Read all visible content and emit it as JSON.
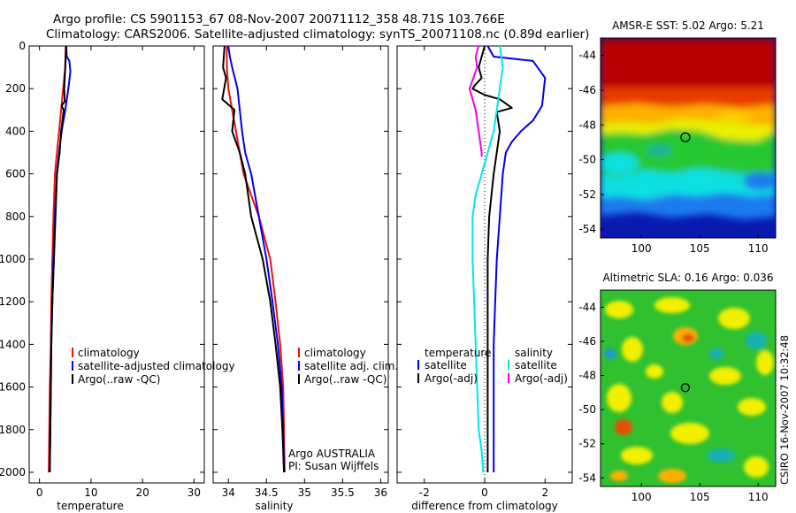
{
  "header": {
    "line1": "Argo profile: CS 5901153_67 08-Nov-2007 20071112_358 48.71S 103.766E",
    "line2": "Climatology: CARS2006. Satellite-adjusted climatology: synTS_20071108.nc (0.89d earlier)"
  },
  "side_label": "CSIRO 16-Nov-2007 10:32:48",
  "colors": {
    "climatology": "#ee1111",
    "satellite": "#0000ee",
    "argo": "#000000",
    "salinity_satellite": "#00e5ee",
    "salinity_argo": "#ee00ee"
  },
  "chart_data": [
    {
      "type": "line",
      "panel": "temperature",
      "xlabel": "temperature",
      "ylabel": "",
      "xlim": [
        -2,
        32
      ],
      "ylim": [
        2050,
        0
      ],
      "xticks": [
        0,
        10,
        20,
        30
      ],
      "yticks": [
        0,
        200,
        400,
        600,
        800,
        1000,
        1200,
        1400,
        1600,
        1800,
        2000
      ],
      "legend": [
        "climatology",
        "satellite-adjusted climatology",
        "Argo(..raw -QC)"
      ],
      "series": [
        {
          "name": "climatology",
          "color": "#ee1111",
          "x": [
            5.1,
            5.0,
            4.6,
            4.2,
            3.8,
            3.4,
            3.0,
            2.7,
            2.5,
            2.3,
            2.2,
            2.0,
            1.9,
            1.8
          ],
          "y": [
            0,
            100,
            200,
            300,
            400,
            500,
            600,
            800,
            1000,
            1200,
            1400,
            1600,
            1800,
            2000
          ]
        },
        {
          "name": "satellite-adjusted climatology",
          "color": "#0000ee",
          "x": [
            5.2,
            5.3,
            5.8,
            6.0,
            5.6,
            5.0,
            4.3,
            3.8,
            3.4,
            3.0,
            2.7,
            2.5,
            2.3,
            2.2,
            2.1,
            2.0
          ],
          "y": [
            0,
            50,
            70,
            120,
            200,
            300,
            400,
            500,
            600,
            800,
            1000,
            1200,
            1400,
            1600,
            1800,
            2000
          ]
        },
        {
          "name": "Argo(..raw -QC)",
          "color": "#000000",
          "x": [
            5.2,
            5.0,
            4.8,
            4.9,
            4.3,
            4.7,
            4.2,
            3.9,
            3.4,
            3.1,
            2.8,
            2.5,
            2.3,
            2.2,
            2.1,
            2.0
          ],
          "y": [
            0,
            100,
            200,
            260,
            280,
            300,
            400,
            500,
            600,
            800,
            1000,
            1200,
            1400,
            1600,
            1800,
            2000
          ]
        }
      ]
    },
    {
      "type": "line",
      "panel": "salinity",
      "xlabel": "salinity",
      "ylabel": "",
      "xlim": [
        33.8,
        36.1
      ],
      "ylim": [
        2050,
        0
      ],
      "xticks": [
        34,
        34.5,
        35,
        35.5,
        36
      ],
      "xticklabels": [
        "34",
        "34.5",
        "35",
        "35.5",
        "36"
      ],
      "legend": [
        "climatology",
        "satellite adj. clim.",
        "Argo(..raw -QC)"
      ],
      "annotations": [
        "Argo AUSTRALIA",
        "PI: Susan Wijffels"
      ],
      "series": [
        {
          "name": "climatology",
          "color": "#ee1111",
          "x": [
            33.98,
            33.98,
            34.0,
            34.05,
            34.1,
            34.15,
            34.2,
            34.3,
            34.4,
            34.55,
            34.62,
            34.68,
            34.72,
            34.73,
            34.74
          ],
          "y": [
            0,
            100,
            200,
            300,
            400,
            500,
            600,
            700,
            800,
            1000,
            1200,
            1400,
            1600,
            1800,
            2000
          ]
        },
        {
          "name": "satellite adj. clim.",
          "color": "#0000ee",
          "x": [
            34.0,
            34.02,
            34.05,
            34.12,
            34.15,
            34.18,
            34.22,
            34.3,
            34.4,
            34.5,
            34.58,
            34.65,
            34.7,
            34.72,
            34.73
          ],
          "y": [
            0,
            50,
            100,
            200,
            300,
            400,
            500,
            600,
            800,
            1000,
            1200,
            1400,
            1600,
            1800,
            2000
          ]
        },
        {
          "name": "Argo(..raw -QC)",
          "color": "#000000",
          "x": [
            33.95,
            33.93,
            33.97,
            33.92,
            34.08,
            34.05,
            34.15,
            34.22,
            34.3,
            34.45,
            34.55,
            34.62,
            34.68,
            34.71,
            34.73
          ],
          "y": [
            0,
            100,
            150,
            250,
            300,
            400,
            500,
            600,
            800,
            1000,
            1200,
            1400,
            1600,
            1800,
            2000
          ]
        }
      ]
    },
    {
      "type": "line",
      "panel": "difference",
      "xlabel": "difference from climatology",
      "ylabel": "",
      "xlim": [
        -2.9,
        2.9
      ],
      "ylim": [
        2050,
        0
      ],
      "xticks": [
        -2,
        0,
        2
      ],
      "legend_titles": [
        "temperature",
        "salinity"
      ],
      "legend": [
        "satellite",
        "Argo(-adj)",
        "satellite",
        "Argo(-adj)"
      ],
      "series": [
        {
          "name": "temperature satellite",
          "color": "#0000ee",
          "x": [
            0.1,
            0.3,
            1.6,
            2.0,
            1.9,
            1.6,
            1.2,
            0.9,
            0.7,
            0.6,
            0.5,
            0.4,
            0.35,
            0.3,
            0.3,
            0.3
          ],
          "y": [
            0,
            50,
            70,
            150,
            280,
            350,
            400,
            450,
            500,
            600,
            800,
            1000,
            1200,
            1400,
            1700,
            2000
          ]
        },
        {
          "name": "temperature Argo(-adj)",
          "color": "#000000",
          "x": [
            0.0,
            -0.2,
            -0.1,
            -0.3,
            -0.4,
            0.0,
            0.5,
            0.9,
            0.4,
            0.5,
            0.3,
            0.15,
            0.1,
            0.1,
            0.1,
            0.1
          ],
          "y": [
            0,
            100,
            150,
            180,
            200,
            230,
            250,
            290,
            310,
            400,
            600,
            800,
            1000,
            1200,
            1600,
            2000
          ]
        },
        {
          "name": "salinity satellite",
          "color": "#00e5ee",
          "x": [
            0.5,
            0.6,
            0.5,
            0.4,
            0.3,
            0.1,
            -0.1,
            -0.3,
            -0.4,
            -0.4,
            -0.35,
            -0.3,
            -0.25,
            -0.2,
            -0.1,
            -0.05
          ],
          "y": [
            0,
            100,
            200,
            300,
            400,
            500,
            600,
            700,
            800,
            1000,
            1200,
            1400,
            1600,
            1800,
            1900,
            2000
          ]
        },
        {
          "name": "salinity Argo(-adj)",
          "color": "#ee00ee",
          "x": [
            -0.2,
            -0.3,
            -0.25,
            -0.5,
            -0.3,
            -0.2,
            -0.1,
            -0.1
          ],
          "y": [
            0,
            50,
            100,
            200,
            300,
            400,
            500,
            520
          ]
        }
      ],
      "zero_line": true
    },
    {
      "type": "heatmap",
      "panel": "sst-map",
      "title": "AMSR-E SST: 5.02 Argo: 5.21",
      "xlim": [
        96.5,
        111.5
      ],
      "ylim": [
        -54.5,
        -43
      ],
      "xticks": [
        100,
        105,
        110
      ],
      "yticks": [
        -44,
        -46,
        -48,
        -50,
        -52,
        -54
      ],
      "marker": {
        "lon": 103.766,
        "lat": -48.71
      }
    },
    {
      "type": "heatmap",
      "panel": "sla-map",
      "title": "Altimetric SLA: 0.16 Argo: 0.036",
      "xlim": [
        96.5,
        111.5
      ],
      "ylim": [
        -54.5,
        -43
      ],
      "xticks": [
        100,
        105,
        110
      ],
      "yticks": [
        -44,
        -46,
        -48,
        -50,
        -52,
        -54
      ],
      "marker": {
        "lon": 103.766,
        "lat": -48.71
      }
    }
  ]
}
